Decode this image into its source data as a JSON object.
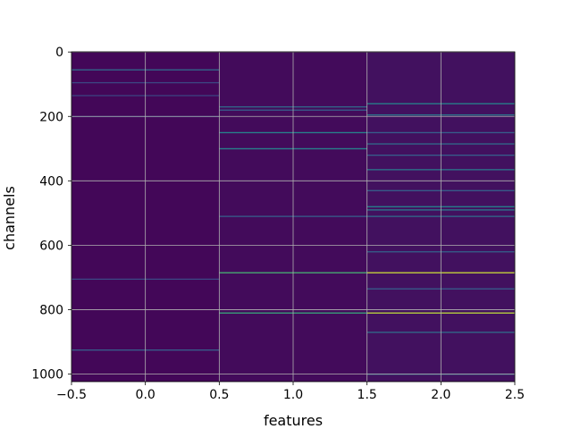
{
  "chart_data": {
    "type": "heatmap",
    "title": "",
    "xlabel": "features",
    "ylabel": "channels",
    "xlim": [
      -0.5,
      2.5
    ],
    "ylim": [
      1023.5,
      -0.5
    ],
    "y_inverted": true,
    "columns": [
      0,
      1,
      2
    ],
    "n_rows": 1024,
    "colormap": "viridis",
    "grid": true,
    "x_ticks": [
      -0.5,
      0.0,
      0.5,
      1.0,
      1.5,
      2.0,
      2.5
    ],
    "x_tick_labels": [
      "−0.5",
      "0.0",
      "0.5",
      "1.0",
      "1.5",
      "2.0",
      "2.5"
    ],
    "y_ticks": [
      0,
      200,
      400,
      600,
      800,
      1000
    ],
    "y_tick_labels": [
      "0",
      "200",
      "400",
      "600",
      "800",
      "1000"
    ],
    "background_levels": [
      0.02,
      0.03,
      0.05
    ],
    "stripes": [
      {
        "col": 0,
        "row": 55,
        "v": 0.35
      },
      {
        "col": 0,
        "row": 95,
        "v": 0.22
      },
      {
        "col": 0,
        "row": 135,
        "v": 0.2
      },
      {
        "col": 0,
        "row": 200,
        "v": 0.18
      },
      {
        "col": 0,
        "row": 705,
        "v": 0.22
      },
      {
        "col": 0,
        "row": 925,
        "v": 0.3
      },
      {
        "col": 1,
        "row": 170,
        "v": 0.35
      },
      {
        "col": 1,
        "row": 180,
        "v": 0.3
      },
      {
        "col": 1,
        "row": 250,
        "v": 0.45
      },
      {
        "col": 1,
        "row": 300,
        "v": 0.45
      },
      {
        "col": 1,
        "row": 510,
        "v": 0.3
      },
      {
        "col": 1,
        "row": 685,
        "v": 0.65
      },
      {
        "col": 1,
        "row": 810,
        "v": 0.6
      },
      {
        "col": 2,
        "row": 160,
        "v": 0.45
      },
      {
        "col": 2,
        "row": 195,
        "v": 0.4
      },
      {
        "col": 2,
        "row": 250,
        "v": 0.3
      },
      {
        "col": 2,
        "row": 285,
        "v": 0.35
      },
      {
        "col": 2,
        "row": 320,
        "v": 0.3
      },
      {
        "col": 2,
        "row": 365,
        "v": 0.4
      },
      {
        "col": 2,
        "row": 430,
        "v": 0.3
      },
      {
        "col": 2,
        "row": 480,
        "v": 0.45
      },
      {
        "col": 2,
        "row": 490,
        "v": 0.4
      },
      {
        "col": 2,
        "row": 510,
        "v": 0.35
      },
      {
        "col": 2,
        "row": 620,
        "v": 0.3
      },
      {
        "col": 2,
        "row": 685,
        "v": 0.92
      },
      {
        "col": 2,
        "row": 735,
        "v": 0.3
      },
      {
        "col": 2,
        "row": 810,
        "v": 0.9
      },
      {
        "col": 2,
        "row": 870,
        "v": 0.35
      },
      {
        "col": 2,
        "row": 1000,
        "v": 0.35
      }
    ]
  }
}
